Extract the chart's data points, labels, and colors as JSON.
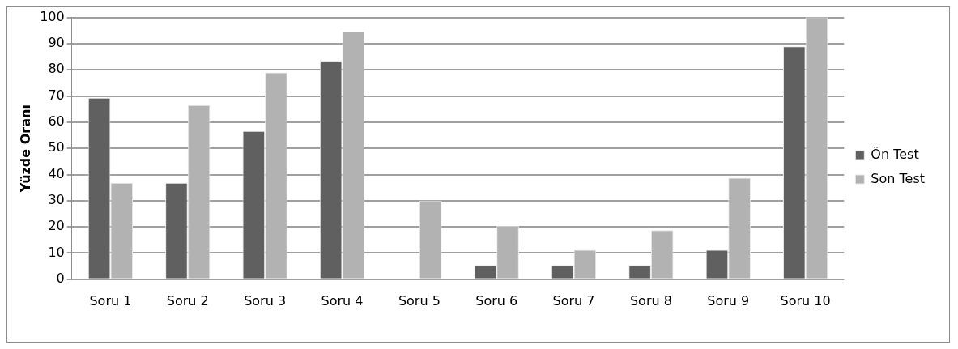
{
  "chart_data": {
    "type": "bar",
    "ylabel": "Yüzde Oranı",
    "categories": [
      "Soru 1",
      "Soru 2",
      "Soru 3",
      "Soru 4",
      "Soru 5",
      "Soru 6",
      "Soru 7",
      "Soru 8",
      "Soru 9",
      "Soru 10"
    ],
    "series": [
      {
        "name": "Ön Test",
        "color": "#606060",
        "values": [
          69.3,
          36.8,
          56.6,
          83.5,
          0,
          5.4,
          5.4,
          5.4,
          11.2,
          89
        ]
      },
      {
        "name": "Son Test",
        "color": "#b2b2b2",
        "values": [
          36.8,
          66.5,
          79,
          94.6,
          30,
          20.4,
          11.2,
          18.7,
          38.8,
          100
        ]
      }
    ],
    "ylim": [
      0,
      100
    ],
    "yticks": [
      0,
      10,
      20,
      30,
      40,
      50,
      60,
      70,
      80,
      90,
      100
    ],
    "grid": "y",
    "legend": "right"
  }
}
